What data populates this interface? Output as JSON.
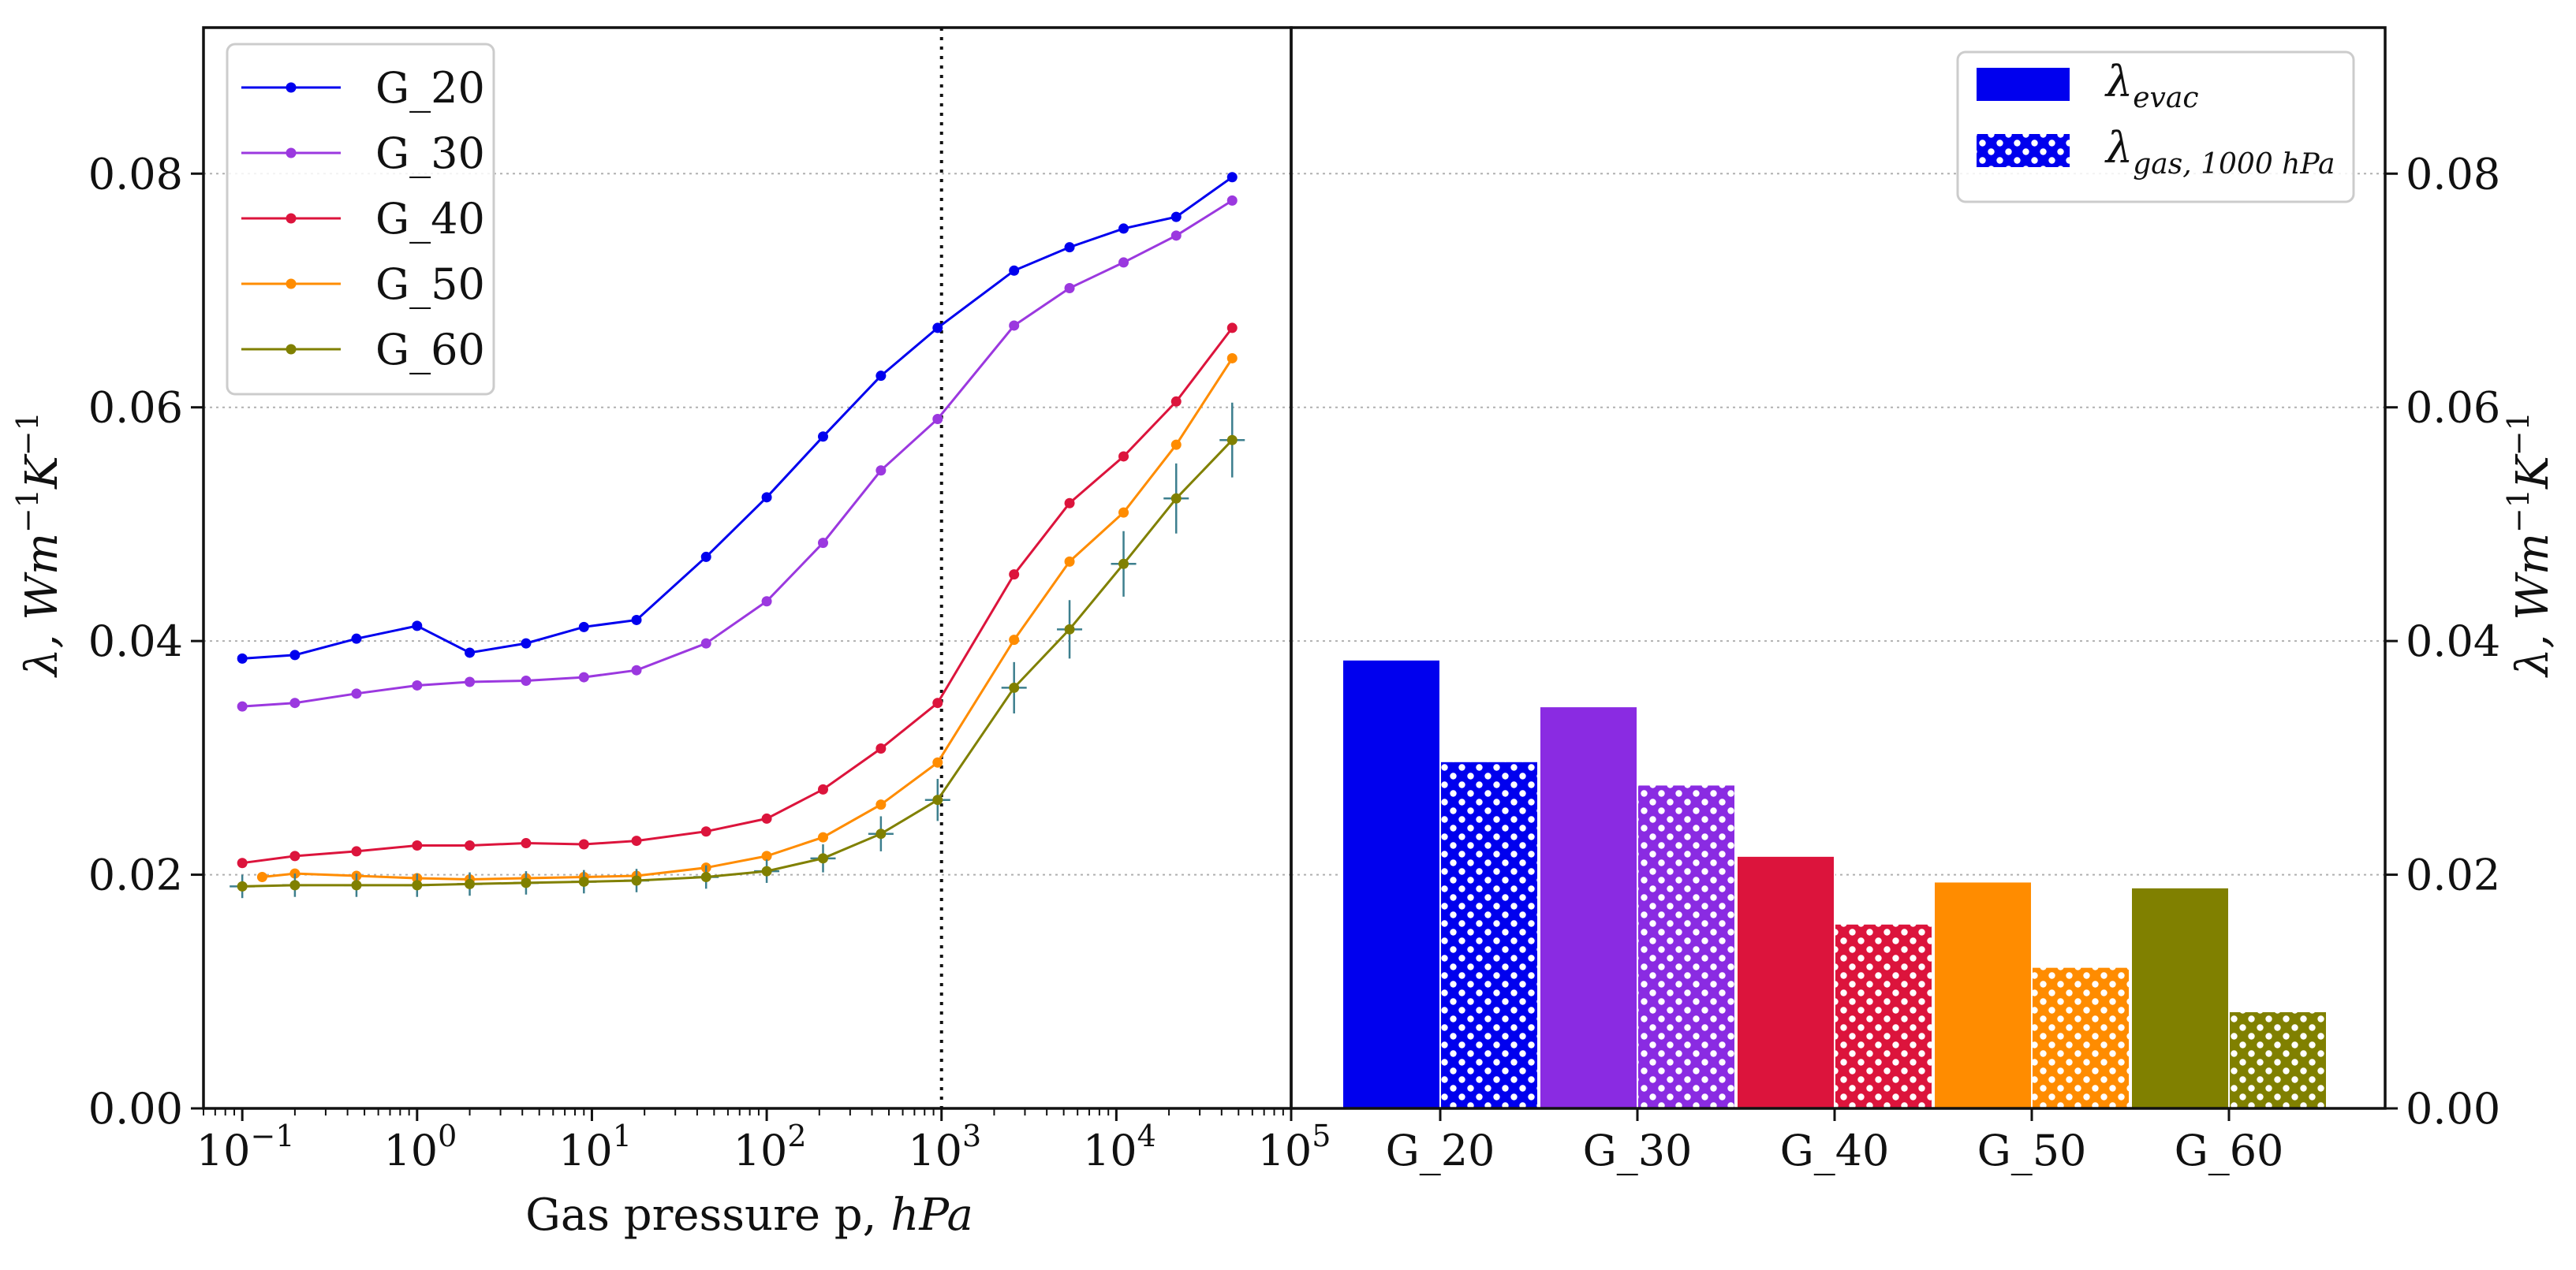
{
  "chart_data": [
    {
      "type": "line",
      "panel": "left",
      "xscale": "log",
      "xlim": [
        0.06,
        100000
      ],
      "ylim": [
        0,
        0.0925
      ],
      "xlabel": "Gas pressure p, hPa",
      "xlabel_plain": "Gas pressure p, ",
      "xlabel_unit": "hPa",
      "ylabel": "λ, Wm⁻¹K⁻¹",
      "ylabel_prefix": "λ, Wm",
      "ylabel_exp1": "−1",
      "ylabel_mid": "K",
      "ylabel_exp2": "−1",
      "yticks": [
        "0.00",
        "0.02",
        "0.04",
        "0.06",
        "0.08"
      ],
      "ytick_values": [
        0,
        0.02,
        0.04,
        0.06,
        0.08
      ],
      "xticks": [
        {
          "base": "10",
          "exp": "−1",
          "value": 0.1
        },
        {
          "base": "10",
          "exp": "0",
          "value": 1
        },
        {
          "base": "10",
          "exp": "1",
          "value": 10
        },
        {
          "base": "10",
          "exp": "2",
          "value": 100
        },
        {
          "base": "10",
          "exp": "3",
          "value": 1000
        },
        {
          "base": "10",
          "exp": "4",
          "value": 10000
        },
        {
          "base": "10",
          "exp": "5",
          "value": 100000
        }
      ],
      "vline_x": 1000,
      "legend_position": "top-left",
      "grid": "horizontal dotted",
      "series": [
        {
          "name": "G_20",
          "color": "#0000ee",
          "x": [
            0.1,
            0.2,
            0.45,
            1,
            2,
            4.2,
            9,
            18,
            45,
            100,
            210,
            450,
            950,
            2600,
            5400,
            11000,
            22000,
            46000
          ],
          "y": [
            0.0385,
            0.0388,
            0.0402,
            0.0413,
            0.039,
            0.0398,
            0.0412,
            0.0418,
            0.0472,
            0.0523,
            0.0575,
            0.0627,
            0.0668,
            0.0717,
            0.0737,
            0.0753,
            0.0763,
            0.0797
          ]
        },
        {
          "name": "G_30",
          "color": "#9b38df",
          "x": [
            0.1,
            0.2,
            0.45,
            1,
            2,
            4.2,
            9,
            18,
            45,
            100,
            210,
            450,
            950,
            2600,
            5400,
            11000,
            22000,
            46000
          ],
          "y": [
            0.0344,
            0.0347,
            0.0355,
            0.0362,
            0.0365,
            0.0366,
            0.0369,
            0.0375,
            0.0398,
            0.0434,
            0.0484,
            0.0546,
            0.059,
            0.067,
            0.0702,
            0.0724,
            0.0747,
            0.0777
          ]
        },
        {
          "name": "G_40",
          "color": "#dc143c",
          "x": [
            0.1,
            0.2,
            0.45,
            1,
            2,
            4.2,
            9,
            18,
            45,
            100,
            210,
            450,
            950,
            2600,
            5400,
            11000,
            22000,
            46000
          ],
          "y": [
            0.021,
            0.0216,
            0.022,
            0.0225,
            0.0225,
            0.0227,
            0.0226,
            0.0229,
            0.0237,
            0.0248,
            0.0273,
            0.0308,
            0.0347,
            0.0457,
            0.0518,
            0.0558,
            0.0605,
            0.0668
          ]
        },
        {
          "name": "G_50",
          "color": "#ff8c00",
          "x": [
            0.13,
            0.2,
            0.45,
            1,
            2,
            4.2,
            9,
            18,
            45,
            100,
            210,
            450,
            950,
            2600,
            5400,
            11000,
            22000,
            46000
          ],
          "y": [
            0.0198,
            0.0201,
            0.0199,
            0.0197,
            0.0196,
            0.0197,
            0.0198,
            0.0199,
            0.0206,
            0.0216,
            0.0232,
            0.026,
            0.0296,
            0.0401,
            0.0468,
            0.051,
            0.0568,
            0.0642
          ]
        },
        {
          "name": "G_60",
          "color": "#808000",
          "errcolor": "#3d7f8e",
          "x": [
            0.1,
            0.2,
            0.45,
            1,
            2,
            4.2,
            9,
            18,
            45,
            100,
            210,
            450,
            950,
            2600,
            5400,
            11000,
            22000,
            46000
          ],
          "y": [
            0.019,
            0.0191,
            0.0191,
            0.0191,
            0.0192,
            0.0193,
            0.0194,
            0.0195,
            0.0198,
            0.0203,
            0.0214,
            0.0235,
            0.0264,
            0.036,
            0.041,
            0.0466,
            0.0522,
            0.0572
          ],
          "yerr": [
            0.001,
            0.001,
            0.001,
            0.001,
            0.001,
            0.001,
            0.001,
            0.001,
            0.001,
            0.001,
            0.0012,
            0.0015,
            0.0018,
            0.0022,
            0.0025,
            0.0028,
            0.003,
            0.0032
          ]
        }
      ]
    },
    {
      "type": "bar",
      "panel": "right",
      "ylim": [
        0,
        0.0925
      ],
      "ylabel": "λ, Wm⁻¹K⁻¹",
      "yticks": [
        "0.00",
        "0.02",
        "0.04",
        "0.06",
        "0.08"
      ],
      "ytick_values": [
        0,
        0.02,
        0.04,
        0.06,
        0.08
      ],
      "categories": [
        "G_20",
        "G_30",
        "G_40",
        "G_50",
        "G_60"
      ],
      "colors": [
        "#0000ee",
        "#8a2be2",
        "#dc143c",
        "#ff8c00",
        "#808000"
      ],
      "legend_position": "top-right",
      "series": [
        {
          "name": "λevac",
          "label_base": "λ",
          "label_sub": "evac",
          "pattern": "solid",
          "values": [
            0.0384,
            0.0344,
            0.0216,
            0.0194,
            0.0189
          ]
        },
        {
          "name": "λgas, 1000 hPa",
          "label_base": "λ",
          "label_sub": "gas, 1000 hPa",
          "pattern": "dots",
          "values": [
            0.0297,
            0.0277,
            0.0158,
            0.0121,
            0.0083
          ]
        }
      ]
    }
  ]
}
